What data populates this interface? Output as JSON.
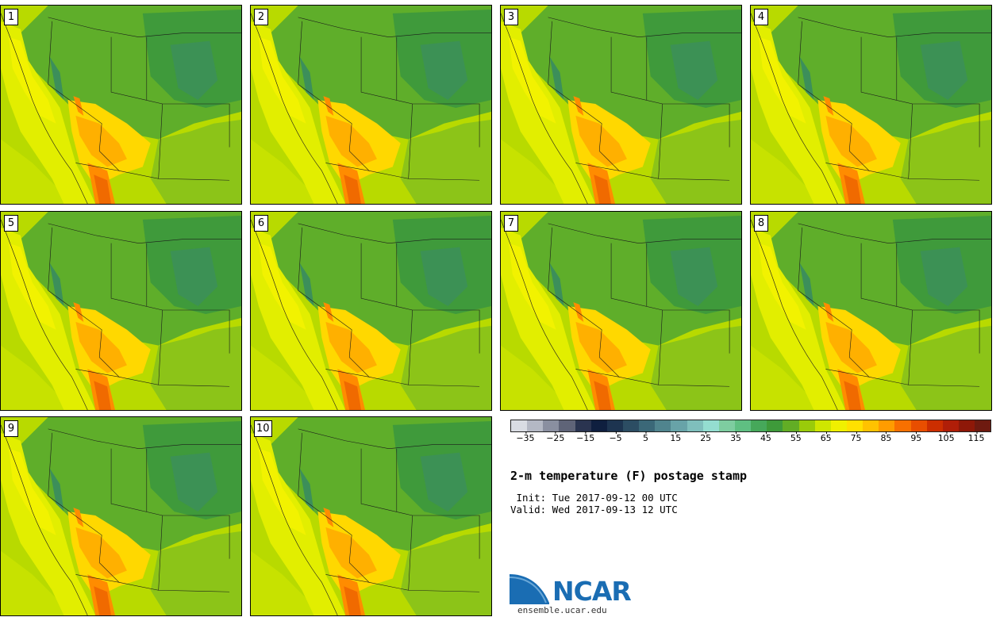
{
  "stamps": [
    {
      "label": "1"
    },
    {
      "label": "2"
    },
    {
      "label": "3"
    },
    {
      "label": "4"
    },
    {
      "label": "5"
    },
    {
      "label": "6"
    },
    {
      "label": "7"
    },
    {
      "label": "8"
    },
    {
      "label": "9"
    },
    {
      "label": "10"
    }
  ],
  "colorbar": {
    "colors": [
      "#d9dce3",
      "#b4b8c4",
      "#8a8fa0",
      "#5f6478",
      "#2a3450",
      "#0f1f3f",
      "#1d3450",
      "#2c4d63",
      "#3b6878",
      "#50848e",
      "#68a3a8",
      "#7fbfbc",
      "#94ddd0",
      "#7ecda0",
      "#5fbf82",
      "#46a85a",
      "#3e9a3a",
      "#62ad25",
      "#9acb0a",
      "#cfe600",
      "#f0f000",
      "#ffe000",
      "#ffc200",
      "#ff9c00",
      "#f87000",
      "#e84e00",
      "#cc2e00",
      "#b01e08",
      "#8e1808",
      "#6e1a10"
    ],
    "tick_labels": [
      "-35",
      "-25",
      "-15",
      "-5",
      "5",
      "15",
      "25",
      "35",
      "45",
      "55",
      "65",
      "75",
      "85",
      "95",
      "105",
      "115"
    ],
    "range": [
      -40,
      120
    ]
  },
  "title": "2-m temperature (F) postage stamp",
  "init_line": " Init: Tue 2017-09-12 00 UTC",
  "valid_line": "Valid: Wed 2017-09-13 12 UTC",
  "logo": {
    "text": "NCAR",
    "url": "ensemble.ucar.edu"
  }
}
